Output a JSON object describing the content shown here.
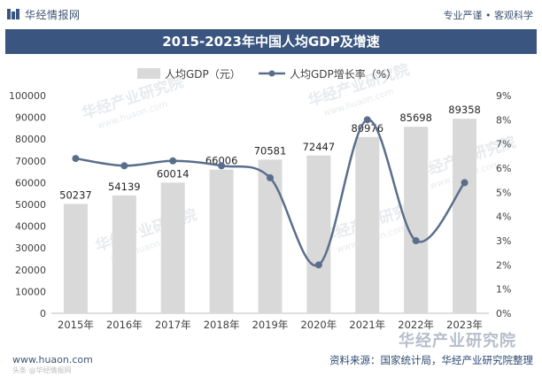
{
  "header": {
    "logo_text": "华经情报网",
    "tagline": "专业严谨 • 客观科学"
  },
  "title": "2015-2023年中国人均GDP及增速",
  "chart_data": {
    "type": "bar",
    "categories": [
      "2015年",
      "2016年",
      "2017年",
      "2018年",
      "2019年",
      "2020年",
      "2021年",
      "2022年",
      "2023年"
    ],
    "series": [
      {
        "name": "人均GDP（元）",
        "type": "bar",
        "values": [
          50237,
          54139,
          60014,
          66006,
          70581,
          72447,
          80976,
          85698,
          89358
        ],
        "color": "#d9d9d9"
      },
      {
        "name": "人均GDP增长率（%）",
        "type": "line",
        "values": [
          6.4,
          6.1,
          6.3,
          6.1,
          5.6,
          2.0,
          8.0,
          3.0,
          5.4
        ],
        "color": "#5a6e8c"
      }
    ],
    "y_left": {
      "ylim": [
        0,
        100000
      ],
      "ticks": [
        "0",
        "10000",
        "20000",
        "30000",
        "40000",
        "50000",
        "60000",
        "70000",
        "80000",
        "90000",
        "100000"
      ]
    },
    "y_right": {
      "ylim": [
        0,
        9
      ],
      "ticks": [
        "0%",
        "1%",
        "2%",
        "3%",
        "4%",
        "5%",
        "6%",
        "7%",
        "8%",
        "9%"
      ]
    },
    "legend_position": "top",
    "grid": false
  },
  "watermark": {
    "brand": "华经产业研究院",
    "url": "www.huaon.com",
    "repeated": "华经产业研究院",
    "repeated_url": "www.huaon.com"
  },
  "footer": {
    "url": "www.huaon.com",
    "source": "资料来源：国家统计局，华经产业研究院整理",
    "watermark_small": "头条 @华经情报网"
  },
  "colors": {
    "title_bg": "#3a557f",
    "bar": "#d9d9d9",
    "line": "#5a6e8c",
    "text": "#404040"
  }
}
